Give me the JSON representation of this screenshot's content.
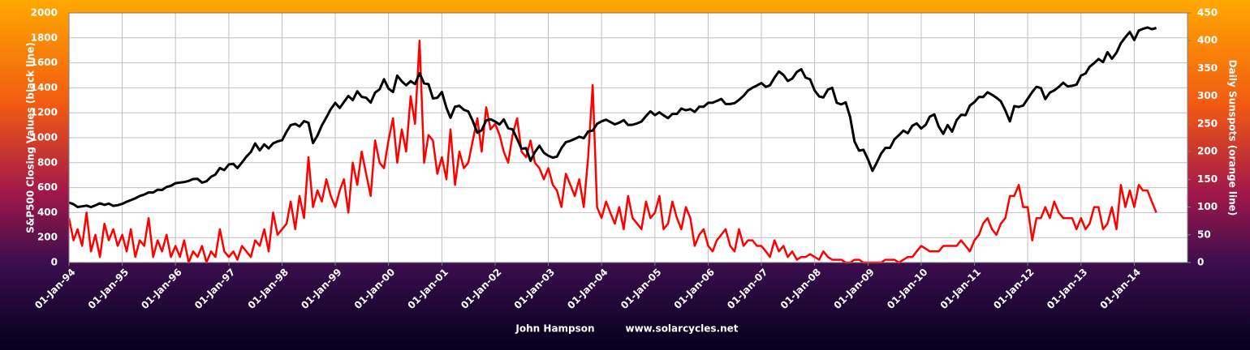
{
  "chart_data": {
    "type": "line",
    "y_label": "S&P500 Closing Values (black line)",
    "y2_label": "Daily Sunspots (orange line)",
    "footer": [
      "John Hampson",
      "www.solarcycles.net"
    ],
    "xlim": [
      "1994-01-01",
      "2015-01-01"
    ],
    "xticks": [
      {
        "value": "1994-01-01",
        "label": "01-Jan-94"
      },
      {
        "value": "1995-01-01",
        "label": "01-Jan-95"
      },
      {
        "value": "1996-01-01",
        "label": "01-Jan-96"
      },
      {
        "value": "1997-01-01",
        "label": "01-Jan-97"
      },
      {
        "value": "1998-01-01",
        "label": "01-Jan-98"
      },
      {
        "value": "1999-01-01",
        "label": "01-Jan-99"
      },
      {
        "value": "2000-01-01",
        "label": "01-Jan-00"
      },
      {
        "value": "2001-01-01",
        "label": "01-Jan-01"
      },
      {
        "value": "2002-01-01",
        "label": "01-Jan-02"
      },
      {
        "value": "2003-01-01",
        "label": "01-Jan-03"
      },
      {
        "value": "2004-01-01",
        "label": "01-Jan-04"
      },
      {
        "value": "2005-01-01",
        "label": "01-Jan-05"
      },
      {
        "value": "2006-01-01",
        "label": "01-Jan-06"
      },
      {
        "value": "2007-01-01",
        "label": "01-Jan-07"
      },
      {
        "value": "2008-01-01",
        "label": "01-Jan-08"
      },
      {
        "value": "2009-01-01",
        "label": "01-Jan-09"
      },
      {
        "value": "2010-01-01",
        "label": "01-Jan-10"
      },
      {
        "value": "2011-01-01",
        "label": "01-Jan-11"
      },
      {
        "value": "2012-01-01",
        "label": "01-Jan-12"
      },
      {
        "value": "2013-01-01",
        "label": "01-Jan-13"
      },
      {
        "value": "2014-01-01",
        "label": "01-Jan-14"
      }
    ],
    "ylim": [
      0,
      2000
    ],
    "yticks": [
      0,
      200,
      400,
      600,
      800,
      1000,
      1200,
      1400,
      1600,
      1800,
      2000
    ],
    "y2lim": [
      0,
      450
    ],
    "y2ticks": [
      0,
      50,
      100,
      150,
      200,
      250,
      300,
      350,
      400,
      450
    ],
    "grid": true,
    "x": [
      "1994-01-01",
      "1994-02-01",
      "1994-03-01",
      "1994-04-01",
      "1994-05-01",
      "1994-06-01",
      "1994-07-01",
      "1994-08-01",
      "1994-09-01",
      "1994-10-01",
      "1994-11-01",
      "1994-12-01",
      "1995-01-01",
      "1995-02-01",
      "1995-03-01",
      "1995-04-01",
      "1995-05-01",
      "1995-06-01",
      "1995-07-01",
      "1995-08-01",
      "1995-09-01",
      "1995-10-01",
      "1995-11-01",
      "1995-12-01",
      "1996-01-01",
      "1996-02-01",
      "1996-03-01",
      "1996-04-01",
      "1996-05-01",
      "1996-06-01",
      "1996-07-01",
      "1996-08-01",
      "1996-09-01",
      "1996-10-01",
      "1996-11-01",
      "1996-12-01",
      "1997-01-01",
      "1997-02-01",
      "1997-03-01",
      "1997-04-01",
      "1997-05-01",
      "1997-06-01",
      "1997-07-01",
      "1997-08-01",
      "1997-09-01",
      "1997-10-01",
      "1997-11-01",
      "1997-12-01",
      "1998-01-01",
      "1998-02-01",
      "1998-03-01",
      "1998-04-01",
      "1998-05-01",
      "1998-06-01",
      "1998-07-01",
      "1998-08-01",
      "1998-09-01",
      "1998-10-01",
      "1998-11-01",
      "1998-12-01",
      "1999-01-01",
      "1999-02-01",
      "1999-03-01",
      "1999-04-01",
      "1999-05-01",
      "1999-06-01",
      "1999-07-01",
      "1999-08-01",
      "1999-09-01",
      "1999-10-01",
      "1999-11-01",
      "1999-12-01",
      "2000-01-01",
      "2000-02-01",
      "2000-03-01",
      "2000-04-01",
      "2000-05-01",
      "2000-06-01",
      "2000-07-01",
      "2000-08-01",
      "2000-09-01",
      "2000-10-01",
      "2000-11-01",
      "2000-12-01",
      "2001-01-01",
      "2001-02-01",
      "2001-03-01",
      "2001-04-01",
      "2001-05-01",
      "2001-06-01",
      "2001-07-01",
      "2001-08-01",
      "2001-09-01",
      "2001-10-01",
      "2001-11-01",
      "2001-12-01",
      "2002-01-01",
      "2002-02-01",
      "2002-03-01",
      "2002-04-01",
      "2002-05-01",
      "2002-06-01",
      "2002-07-01",
      "2002-08-01",
      "2002-09-01",
      "2002-10-01",
      "2002-11-01",
      "2002-12-01",
      "2003-01-01",
      "2003-02-01",
      "2003-03-01",
      "2003-04-01",
      "2003-05-01",
      "2003-06-01",
      "2003-07-01",
      "2003-08-01",
      "2003-09-01",
      "2003-10-01",
      "2003-11-01",
      "2003-12-01",
      "2004-01-01",
      "2004-02-01",
      "2004-03-01",
      "2004-04-01",
      "2004-05-01",
      "2004-06-01",
      "2004-07-01",
      "2004-08-01",
      "2004-09-01",
      "2004-10-01",
      "2004-11-01",
      "2004-12-01",
      "2005-01-01",
      "2005-02-01",
      "2005-03-01",
      "2005-04-01",
      "2005-05-01",
      "2005-06-01",
      "2005-07-01",
      "2005-08-01",
      "2005-09-01",
      "2005-10-01",
      "2005-11-01",
      "2005-12-01",
      "2006-01-01",
      "2006-02-01",
      "2006-03-01",
      "2006-04-01",
      "2006-05-01",
      "2006-06-01",
      "2006-07-01",
      "2006-08-01",
      "2006-09-01",
      "2006-10-01",
      "2006-11-01",
      "2006-12-01",
      "2007-01-01",
      "2007-02-01",
      "2007-03-01",
      "2007-04-01",
      "2007-05-01",
      "2007-06-01",
      "2007-07-01",
      "2007-08-01",
      "2007-09-01",
      "2007-10-01",
      "2007-11-01",
      "2007-12-01",
      "2008-01-01",
      "2008-02-01",
      "2008-03-01",
      "2008-04-01",
      "2008-05-01",
      "2008-06-01",
      "2008-07-01",
      "2008-08-01",
      "2008-09-01",
      "2008-10-01",
      "2008-11-01",
      "2008-12-01",
      "2009-01-01",
      "2009-02-01",
      "2009-03-01",
      "2009-04-01",
      "2009-05-01",
      "2009-06-01",
      "2009-07-01",
      "2009-08-01",
      "2009-09-01",
      "2009-10-01",
      "2009-11-01",
      "2009-12-01",
      "2010-01-01",
      "2010-02-01",
      "2010-03-01",
      "2010-04-01",
      "2010-05-01",
      "2010-06-01",
      "2010-07-01",
      "2010-08-01",
      "2010-09-01",
      "2010-10-01",
      "2010-11-01",
      "2010-12-01",
      "2011-01-01",
      "2011-02-01",
      "2011-03-01",
      "2011-04-01",
      "2011-05-01",
      "2011-06-01",
      "2011-07-01",
      "2011-08-01",
      "2011-09-01",
      "2011-10-01",
      "2011-11-01",
      "2011-12-01",
      "2012-01-01",
      "2012-02-01",
      "2012-03-01",
      "2012-04-01",
      "2012-05-01",
      "2012-06-01",
      "2012-07-01",
      "2012-08-01",
      "2012-09-01",
      "2012-10-01",
      "2012-11-01",
      "2012-12-01",
      "2013-01-01",
      "2013-02-01",
      "2013-03-01",
      "2013-04-01",
      "2013-05-01",
      "2013-06-01",
      "2013-07-01",
      "2013-08-01",
      "2013-09-01",
      "2013-10-01",
      "2013-11-01",
      "2013-12-01",
      "2014-01-01",
      "2014-02-01",
      "2014-03-01",
      "2014-04-01",
      "2014-05-01",
      "2014-06-01"
    ],
    "series": [
      {
        "name": "Daily Sunspots",
        "color": "#ff0000",
        "axis": "y2",
        "width": 2.5,
        "values": [
          80,
          40,
          60,
          30,
          90,
          20,
          50,
          10,
          70,
          40,
          60,
          30,
          50,
          20,
          60,
          10,
          40,
          30,
          80,
          10,
          40,
          20,
          50,
          10,
          30,
          10,
          40,
          0,
          20,
          10,
          30,
          0,
          20,
          10,
          60,
          20,
          10,
          20,
          5,
          30,
          20,
          10,
          40,
          30,
          60,
          20,
          90,
          50,
          60,
          70,
          110,
          60,
          120,
          80,
          190,
          100,
          130,
          110,
          150,
          120,
          100,
          130,
          150,
          90,
          180,
          140,
          200,
          160,
          120,
          220,
          180,
          170,
          220,
          260,
          180,
          240,
          200,
          300,
          250,
          400,
          180,
          230,
          220,
          160,
          190,
          150,
          240,
          140,
          200,
          170,
          180,
          220,
          260,
          200,
          280,
          240,
          250,
          230,
          200,
          180,
          230,
          260,
          200,
          190,
          220,
          180,
          170,
          150,
          170,
          140,
          130,
          100,
          160,
          140,
          120,
          150,
          100,
          190,
          320,
          100,
          80,
          110,
          90,
          70,
          100,
          60,
          120,
          80,
          70,
          60,
          110,
          80,
          90,
          120,
          60,
          70,
          110,
          80,
          60,
          100,
          80,
          30,
          50,
          60,
          30,
          20,
          40,
          50,
          60,
          30,
          20,
          60,
          30,
          40,
          40,
          30,
          30,
          20,
          10,
          40,
          20,
          30,
          10,
          20,
          5,
          10,
          10,
          15,
          10,
          5,
          20,
          10,
          5,
          5,
          5,
          0,
          0,
          5,
          5,
          0,
          0,
          0,
          0,
          0,
          5,
          5,
          5,
          0,
          5,
          10,
          10,
          20,
          30,
          25,
          20,
          20,
          20,
          30,
          30,
          30,
          30,
          40,
          30,
          20,
          40,
          50,
          70,
          80,
          60,
          50,
          70,
          80,
          120,
          120,
          140,
          100,
          100,
          40,
          80,
          80,
          100,
          80,
          110,
          90,
          80,
          80,
          80,
          60,
          80,
          60,
          70,
          100,
          100,
          60,
          70,
          100,
          60,
          140,
          100,
          130,
          100,
          140,
          130,
          130,
          110,
          90
        ]
      },
      {
        "name": "S&P500 Closing Values",
        "color": "#000000",
        "width": 3,
        "values": [
          480,
          467,
          445,
          450,
          456,
          444,
          458,
          475,
          462,
          472,
          454,
          459,
          470,
          487,
          500,
          514,
          533,
          544,
          562,
          561,
          584,
          581,
          605,
          615,
          636,
          640,
          645,
          654,
          669,
          670,
          640,
          651,
          687,
          705,
          757,
          740,
          786,
          790,
          757,
          801,
          848,
          885,
          954,
          899,
          947,
          914,
          955,
          970,
          980,
          1049,
          1101,
          1111,
          1090,
          1133,
          1120,
          957,
          1017,
          1098,
          1163,
          1229,
          1279,
          1238,
          1286,
          1335,
          1301,
          1372,
          1328,
          1320,
          1282,
          1362,
          1388,
          1469,
          1394,
          1366,
          1498,
          1452,
          1420,
          1454,
          1430,
          1517,
          1436,
          1429,
          1315,
          1320,
          1366,
          1240,
          1160,
          1249,
          1256,
          1224,
          1211,
          1134,
          1040,
          1060,
          1139,
          1148,
          1130,
          1106,
          1147,
          1076,
          1067,
          990,
          912,
          916,
          815,
          885,
          936,
          880,
          855,
          841,
          848,
          916,
          964,
          975,
          990,
          1008,
          996,
          1050,
          1058,
          1112,
          1131,
          1145,
          1126,
          1107,
          1121,
          1141,
          1102,
          1104,
          1115,
          1130,
          1174,
          1212,
          1181,
          1204,
          1180,
          1157,
          1191,
          1191,
          1234,
          1220,
          1229,
          1207,
          1249,
          1248,
          1280,
          1281,
          1295,
          1311,
          1270,
          1270,
          1277,
          1304,
          1336,
          1378,
          1401,
          1418,
          1438,
          1407,
          1421,
          1482,
          1531,
          1503,
          1455,
          1474,
          1527,
          1549,
          1481,
          1468,
          1379,
          1331,
          1323,
          1386,
          1400,
          1280,
          1267,
          1283,
          1165,
          969,
          896,
          903,
          826,
          735,
          798,
          873,
          919,
          919,
          987,
          1021,
          1057,
          1036,
          1096,
          1115,
          1074,
          1104,
          1169,
          1187,
          1089,
          1031,
          1102,
          1049,
          1141,
          1183,
          1181,
          1258,
          1286,
          1327,
          1326,
          1364,
          1345,
          1321,
          1292,
          1219,
          1131,
          1253,
          1247,
          1258,
          1312,
          1366,
          1408,
          1398,
          1310,
          1362,
          1379,
          1407,
          1441,
          1412,
          1416,
          1426,
          1498,
          1515,
          1569,
          1598,
          1631,
          1606,
          1686,
          1633,
          1682,
          1757,
          1806,
          1848,
          1783,
          1859,
          1872,
          1884,
          1870,
          1880
        ]
      }
    ]
  }
}
